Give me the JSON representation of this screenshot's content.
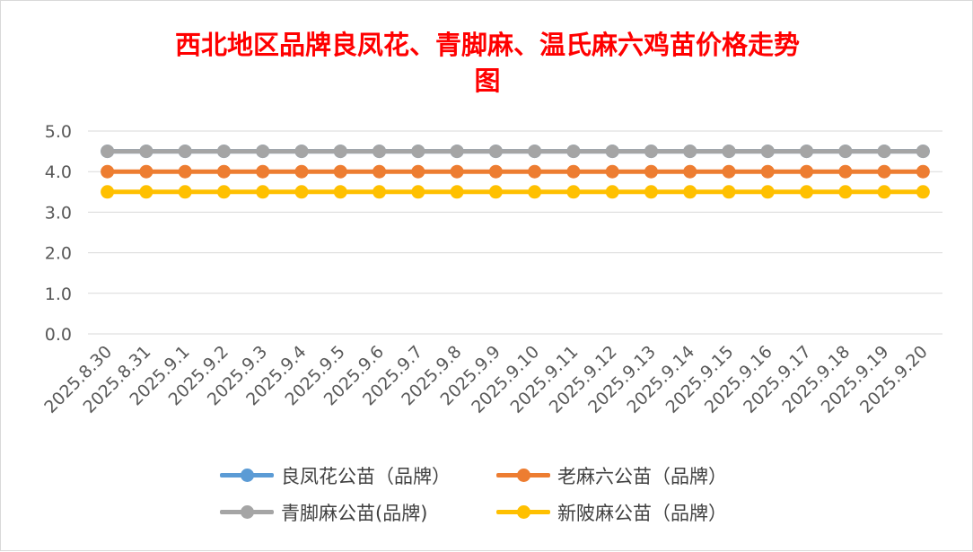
{
  "chart_data": {
    "type": "line",
    "title": "西北地区品牌良凤花、青脚麻、温氏麻六鸡苗价格走势图",
    "title_lines": [
      "西北地区品牌良凤花、青脚麻、温氏麻六鸡苗价格走势",
      "图"
    ],
    "title_color": "#ff0000",
    "xlabel": "",
    "ylabel": "",
    "ylim": [
      0,
      5
    ],
    "yticks": [
      "0.0",
      "1.0",
      "2.0",
      "3.0",
      "4.0",
      "5.0"
    ],
    "grid": true,
    "legend_position": "bottom",
    "categories": [
      "2025.8.30",
      "2025.8.31",
      "2025.9.1",
      "2025.9.2",
      "2025.9.3",
      "2025.9.4",
      "2025.9.5",
      "2025.9.6",
      "2025.9.7",
      "2025.9.8",
      "2025.9.9",
      "2025.9.10",
      "2025.9.11",
      "2025.9.12",
      "2025.9.13",
      "2025.9.14",
      "2025.9.15",
      "2025.9.16",
      "2025.9.17",
      "2025.9.18",
      "2025.9.19",
      "2025.9.20"
    ],
    "series": [
      {
        "name": "良凤花公苗（品牌）",
        "color": "#5b9bd5",
        "values": [
          4.5,
          4.5,
          4.5,
          4.5,
          4.5,
          4.5,
          4.5,
          4.5,
          4.5,
          4.5,
          4.5,
          4.5,
          4.5,
          4.5,
          4.5,
          4.5,
          4.5,
          4.5,
          4.5,
          4.5,
          4.5,
          4.5
        ]
      },
      {
        "name": "老麻六公苗（品牌）",
        "color": "#ed7d31",
        "values": [
          4.0,
          4.0,
          4.0,
          4.0,
          4.0,
          4.0,
          4.0,
          4.0,
          4.0,
          4.0,
          4.0,
          4.0,
          4.0,
          4.0,
          4.0,
          4.0,
          4.0,
          4.0,
          4.0,
          4.0,
          4.0,
          4.0
        ]
      },
      {
        "name": "青脚麻公苗(品牌)",
        "color": "#a5a5a5",
        "values": [
          4.5,
          4.5,
          4.5,
          4.5,
          4.5,
          4.5,
          4.5,
          4.5,
          4.5,
          4.5,
          4.5,
          4.5,
          4.5,
          4.5,
          4.5,
          4.5,
          4.5,
          4.5,
          4.5,
          4.5,
          4.5,
          4.5
        ]
      },
      {
        "name": "新陂麻公苗（品牌）",
        "color": "#ffc000",
        "values": [
          3.5,
          3.5,
          3.5,
          3.5,
          3.5,
          3.5,
          3.5,
          3.5,
          3.5,
          3.5,
          3.5,
          3.5,
          3.5,
          3.5,
          3.5,
          3.5,
          3.5,
          3.5,
          3.5,
          3.5,
          3.5,
          3.5
        ]
      }
    ]
  }
}
